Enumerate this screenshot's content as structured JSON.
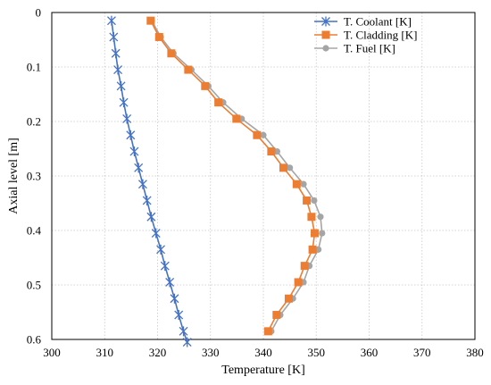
{
  "chart_data": {
    "type": "line",
    "xlabel": "Temperature  [K]",
    "ylabel": "Axial level  [m]",
    "xlim": [
      300,
      380
    ],
    "ylim": [
      0,
      0.6
    ],
    "y_inverted": true,
    "xticks": [
      "300",
      "310",
      "320",
      "330",
      "340",
      "350",
      "360",
      "370",
      "380"
    ],
    "yticks": [
      "0",
      "0.1",
      "0.2",
      "0.3",
      "0.4",
      "0.5",
      "0.6"
    ],
    "xtick_values": [
      300,
      310,
      320,
      330,
      340,
      350,
      360,
      370,
      380
    ],
    "ytick_values": [
      0,
      0.1,
      0.2,
      0.3,
      0.4,
      0.5,
      0.6
    ],
    "grid": "dotted",
    "legend_position": "top-right",
    "series": [
      {
        "name": "T. Coolant [K]",
        "color": "#4472c4",
        "marker": "asterisk",
        "points": [
          [
            311.3,
            0.015
          ],
          [
            311.7,
            0.045
          ],
          [
            312.1,
            0.075
          ],
          [
            312.5,
            0.105
          ],
          [
            313.1,
            0.135
          ],
          [
            313.6,
            0.165
          ],
          [
            314.2,
            0.195
          ],
          [
            314.9,
            0.225
          ],
          [
            315.6,
            0.255
          ],
          [
            316.4,
            0.285
          ],
          [
            317.2,
            0.315
          ],
          [
            318.0,
            0.345
          ],
          [
            318.8,
            0.375
          ],
          [
            319.7,
            0.405
          ],
          [
            320.6,
            0.435
          ],
          [
            321.4,
            0.465
          ],
          [
            322.3,
            0.495
          ],
          [
            323.2,
            0.525
          ],
          [
            324.0,
            0.555
          ],
          [
            324.9,
            0.585
          ],
          [
            325.6,
            0.605
          ]
        ]
      },
      {
        "name": "T. Cladding [K]",
        "color": "#ed7d31",
        "marker": "square",
        "points": [
          [
            318.7,
            0.015
          ],
          [
            320.3,
            0.045
          ],
          [
            322.6,
            0.075
          ],
          [
            325.8,
            0.105
          ],
          [
            329.0,
            0.135
          ],
          [
            331.5,
            0.165
          ],
          [
            334.9,
            0.195
          ],
          [
            338.8,
            0.225
          ],
          [
            341.5,
            0.255
          ],
          [
            343.8,
            0.285
          ],
          [
            346.3,
            0.315
          ],
          [
            348.2,
            0.345
          ],
          [
            349.1,
            0.375
          ],
          [
            349.7,
            0.405
          ],
          [
            349.3,
            0.435
          ],
          [
            347.8,
            0.465
          ],
          [
            346.6,
            0.495
          ],
          [
            344.8,
            0.525
          ],
          [
            342.5,
            0.555
          ],
          [
            340.9,
            0.585
          ]
        ]
      },
      {
        "name": "T. Fuel [K]",
        "color": "#a5a5a5",
        "marker": "circle",
        "points": [
          [
            318.9,
            0.015
          ],
          [
            320.6,
            0.045
          ],
          [
            323.0,
            0.075
          ],
          [
            326.4,
            0.105
          ],
          [
            329.6,
            0.135
          ],
          [
            332.4,
            0.165
          ],
          [
            335.9,
            0.195
          ],
          [
            340.0,
            0.225
          ],
          [
            342.6,
            0.255
          ],
          [
            345.0,
            0.285
          ],
          [
            347.6,
            0.315
          ],
          [
            349.6,
            0.345
          ],
          [
            350.8,
            0.375
          ],
          [
            351.1,
            0.405
          ],
          [
            350.4,
            0.435
          ],
          [
            348.7,
            0.465
          ],
          [
            347.6,
            0.495
          ],
          [
            345.6,
            0.525
          ],
          [
            343.2,
            0.555
          ],
          [
            341.5,
            0.585
          ]
        ]
      }
    ]
  }
}
